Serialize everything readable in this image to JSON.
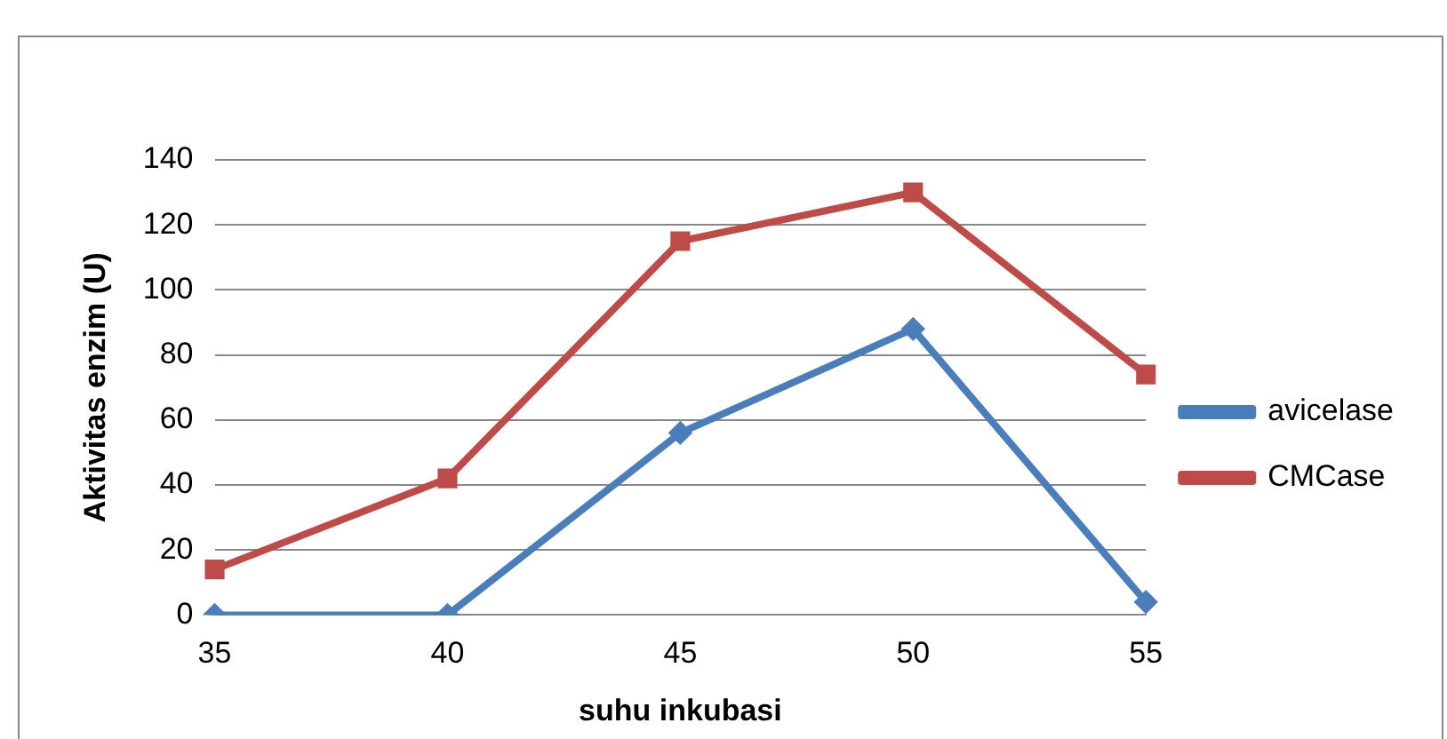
{
  "chart_data": {
    "type": "line",
    "xlabel": "suhu inkubasi",
    "ylabel": "Aktivitas enzim (U)",
    "categories": [
      "35",
      "40",
      "45",
      "50",
      "55"
    ],
    "series": [
      {
        "name": "avicelase",
        "color": "#4a7ebb",
        "values": [
          0,
          0,
          56,
          88,
          4
        ],
        "marker": "diamond"
      },
      {
        "name": "CMCase",
        "color": "#be4b48",
        "values": [
          14,
          42,
          115,
          130,
          74
        ],
        "marker": "square"
      }
    ],
    "ylim": [
      0,
      140
    ],
    "yticks": [
      0,
      20,
      40,
      60,
      80,
      100,
      120,
      140
    ],
    "grid": "y",
    "legend": "right",
    "line_style": "solid"
  }
}
